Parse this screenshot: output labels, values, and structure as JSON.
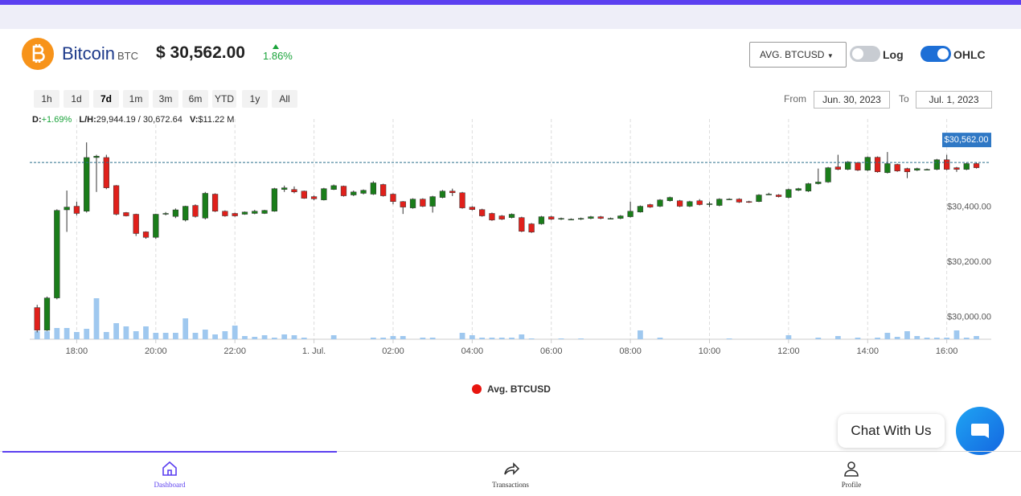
{
  "header": {
    "name": "Bitcoin",
    "symbol": "BTC",
    "price": "$ 30,562.00",
    "change": "1.86%",
    "dropdown": "AVG. BTCUSD",
    "log_label": "Log",
    "log": false,
    "ohlc_label": "OHLC",
    "ohlc": true
  },
  "ranges": {
    "buttons": [
      "1h",
      "1d",
      "7d",
      "1m",
      "3m",
      "6m",
      "YTD",
      "1y",
      "All"
    ],
    "selected": 2,
    "from_label": "From",
    "from": "Jun. 30, 2023",
    "to_label": "To",
    "to": "Jul. 1, 2023"
  },
  "stats": {
    "d_label": "D:",
    "d": "+1.69%",
    "lh_label": "L/H:",
    "lh": "29,944.19 / 30,672.64",
    "v_label": "V:",
    "v": "$11.22 M"
  },
  "chart_data": {
    "type": "candlestick",
    "legend": "Avg. BTCUSD",
    "legend_color": "#e8150f",
    "up_color": "#1a7d1a",
    "down_color": "#e0201b",
    "volume_color": "#9fc8ef",
    "current_price": {
      "value": 30562,
      "label": "$30,562.00"
    },
    "xlim": [
      -0.75,
      96.5
    ],
    "xticks": [
      {
        "value": 4,
        "label": "18:00"
      },
      {
        "value": 12,
        "label": "20:00"
      },
      {
        "value": 20,
        "label": "22:00"
      },
      {
        "value": 28,
        "label": "1. Jul."
      },
      {
        "value": 36,
        "label": "02:00"
      },
      {
        "value": 44,
        "label": "04:00"
      },
      {
        "value": 52,
        "label": "06:00"
      },
      {
        "value": 60,
        "label": "08:00"
      },
      {
        "value": 68,
        "label": "10:00"
      },
      {
        "value": 76,
        "label": "12:00"
      },
      {
        "value": 84,
        "label": "14:00"
      },
      {
        "value": 92,
        "label": "16:00"
      }
    ],
    "ylim": [
      29920,
      30720
    ],
    "yticks": [
      {
        "value": 30000,
        "label": "$30,000.00"
      },
      {
        "value": 30200,
        "label": "$30,200.00"
      },
      {
        "value": 30400,
        "label": "$30,400.00"
      }
    ],
    "vlim": [
      0,
      60
    ],
    "grid": "x",
    "open": [
      30035,
      29953,
      30070,
      30390,
      30403,
      30385,
      30580,
      30580,
      30478,
      30380,
      30374,
      30310,
      30290,
      30375,
      30366,
      30353,
      30406,
      30360,
      30447,
      30385,
      30377,
      30374,
      30377,
      30377,
      30385,
      30464,
      30464,
      30458,
      30438,
      30426,
      30464,
      30476,
      30444,
      30450,
      30447,
      30482,
      30447,
      30420,
      30397,
      30429,
      30403,
      30435,
      30458,
      30452,
      30400,
      30391,
      30377,
      30368,
      30362,
      30362,
      30339,
      30339,
      30365,
      30356,
      30356,
      30356,
      30359,
      30365,
      30359,
      30359,
      30365,
      30382,
      30409,
      30403,
      30423,
      30423,
      30403,
      30423,
      30409,
      30406,
      30429,
      30429,
      30420,
      30420,
      30447,
      30444,
      30435,
      30461,
      30458,
      30485,
      30491,
      30546,
      30537,
      30561,
      30534,
      30581,
      30525,
      30555,
      30540,
      30534,
      30537,
      30537,
      30572,
      30543,
      30537,
      30558
    ],
    "high": [
      30045,
      30075,
      30392,
      30460,
      30420,
      30635,
      30590,
      30590,
      30480,
      30382,
      30376,
      30312,
      30376,
      30382,
      30395,
      30405,
      30410,
      30455,
      30450,
      30388,
      30380,
      30384,
      30390,
      30390,
      30470,
      30478,
      30475,
      30460,
      30442,
      30470,
      30482,
      30478,
      30460,
      30464,
      30494,
      30485,
      30450,
      30422,
      30432,
      30432,
      30441,
      30462,
      30467,
      30455,
      30403,
      30394,
      30380,
      30371,
      30377,
      30365,
      30342,
      30368,
      30368,
      30362,
      30359,
      30362,
      30368,
      30368,
      30362,
      30371,
      30420,
      30406,
      30412,
      30429,
      30438,
      30426,
      30423,
      30429,
      30420,
      30432,
      30432,
      30432,
      30423,
      30447,
      30452,
      30447,
      30467,
      30470,
      30488,
      30540,
      30546,
      30590,
      30567,
      30564,
      30584,
      30584,
      30600,
      30558,
      30543,
      30543,
      30540,
      30575,
      30590,
      30546,
      30561,
      30561
    ],
    "low": [
      29945,
      29950,
      30065,
      30310,
      30370,
      30380,
      30455,
      30465,
      30370,
      30366,
      30295,
      30285,
      30285,
      30370,
      30360,
      30348,
      30362,
      30355,
      30382,
      30365,
      30365,
      30372,
      30374,
      30375,
      30383,
      30455,
      30450,
      30430,
      30425,
      30424,
      30462,
      30438,
      30440,
      30446,
      30444,
      30438,
      30410,
      30375,
      30394,
      30400,
      30380,
      30432,
      30440,
      30394,
      30388,
      30365,
      30350,
      30353,
      30359,
      30309,
      30306,
      30336,
      30353,
      30353,
      30353,
      30353,
      30356,
      30356,
      30356,
      30356,
      30362,
      30380,
      30397,
      30400,
      30420,
      30400,
      30400,
      30406,
      30400,
      30403,
      30426,
      30415,
      30415,
      30418,
      30444,
      30435,
      30432,
      30458,
      30455,
      30482,
      30488,
      30534,
      30534,
      30531,
      30531,
      30525,
      30522,
      30528,
      30505,
      30531,
      30534,
      30534,
      30534,
      30528,
      30534,
      30540
    ],
    "close": [
      29953,
      30070,
      30388,
      30400,
      30377,
      30580,
      30585,
      30470,
      30374,
      30368,
      30304,
      30290,
      30374,
      30377,
      30390,
      30403,
      30366,
      30450,
      30385,
      30368,
      30368,
      30382,
      30385,
      30388,
      30467,
      30470,
      30455,
      30432,
      30430,
      30467,
      30478,
      30441,
      30455,
      30461,
      30488,
      30441,
      30420,
      30400,
      30429,
      30403,
      30438,
      30458,
      30452,
      30397,
      30391,
      30368,
      30353,
      30356,
      30374,
      30312,
      30309,
      30365,
      30356,
      30359,
      30356,
      30359,
      30365,
      30359,
      30359,
      30368,
      30385,
      30403,
      30400,
      30426,
      30435,
      30403,
      30420,
      30409,
      30412,
      30429,
      30429,
      30418,
      30418,
      30444,
      30447,
      30438,
      30464,
      30467,
      30485,
      30491,
      30543,
      30537,
      30564,
      30534,
      30581,
      30528,
      30558,
      30531,
      30528,
      30540,
      30537,
      30572,
      30537,
      30537,
      30558,
      30543
    ],
    "volume": [
      10,
      10,
      14,
      14,
      9,
      13,
      51,
      9,
      20,
      16,
      10,
      16,
      8,
      8,
      8,
      26,
      8,
      12,
      6,
      10,
      17,
      4,
      3,
      5,
      2,
      6,
      5,
      2,
      0,
      0,
      5,
      0,
      0,
      0,
      2,
      2,
      4,
      4,
      0,
      2,
      2,
      0,
      0,
      8,
      5,
      2,
      2,
      2,
      2,
      6,
      1,
      0,
      0,
      1,
      0,
      1,
      0,
      0,
      0,
      0,
      0,
      11,
      0,
      2,
      0,
      0,
      0,
      0,
      0,
      0,
      1,
      0,
      0,
      0,
      0,
      0,
      5,
      0,
      0,
      2,
      0,
      4,
      0,
      2,
      0,
      2,
      8,
      3,
      10,
      4,
      2,
      2,
      2,
      11,
      2,
      4
    ]
  },
  "chat": {
    "label": "Chat With Us"
  },
  "nav": {
    "items": [
      "Dashboard",
      "Transactions",
      "Profile"
    ],
    "active": 0
  }
}
